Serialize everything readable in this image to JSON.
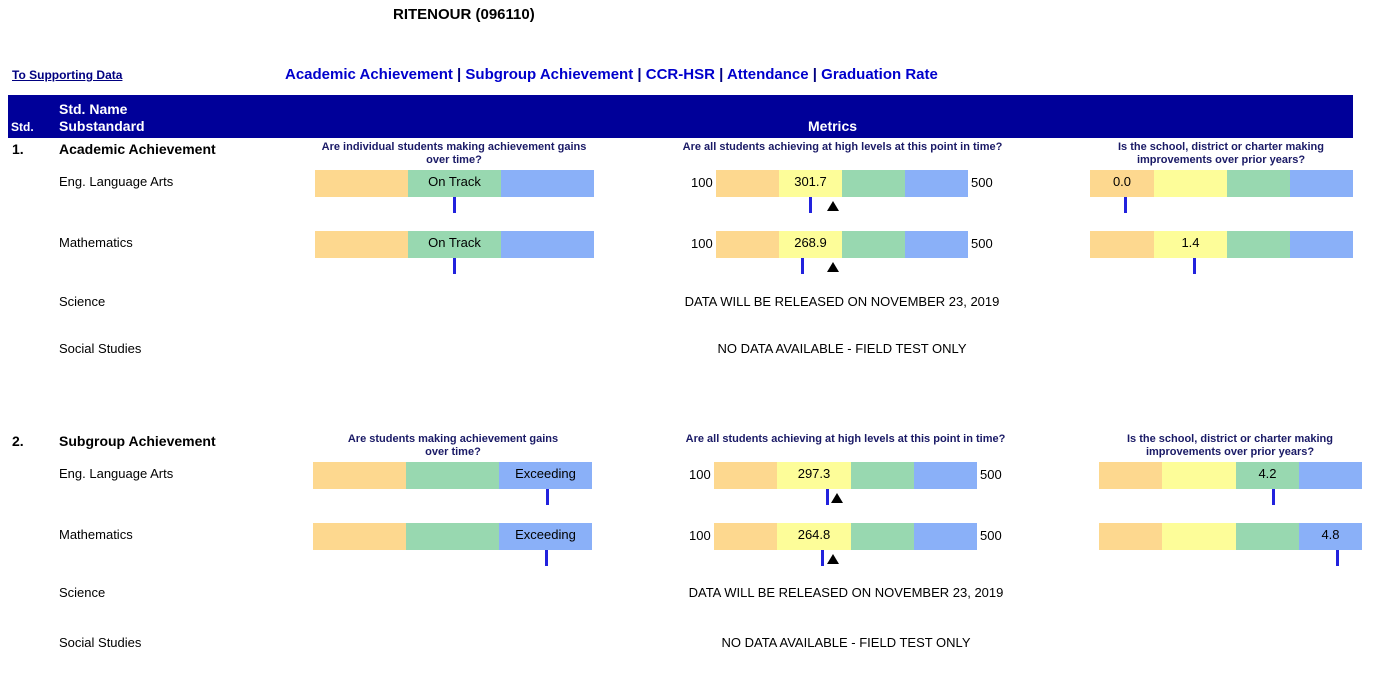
{
  "school_title": "RITENOUR (096110)",
  "support_link": "To Supporting Data",
  "nav": [
    "Academic Achievement",
    "Subgroup Achievement",
    "CCR-HSR",
    "Attendance",
    "Graduation Rate"
  ],
  "nav_sep": "|",
  "header": {
    "std": "Std.",
    "std_name": "Std. Name",
    "substandard": "Substandard",
    "metrics": "Metrics"
  },
  "sections": [
    {
      "num": "1.",
      "name": "Academic Achievement",
      "q_growth": "Are individual students making achievement gains over time?",
      "q_status": "Are all students achieving at high levels at this point in time?",
      "q_progress": "Is the school, district or charter making improvements over prior years?",
      "rows": [
        {
          "label": "Eng. Language Arts",
          "growth": "On Track",
          "status_min": "100",
          "status": "301.7",
          "status_max": "500",
          "progress": "0.0"
        },
        {
          "label": "Mathematics",
          "growth": "On Track",
          "status_min": "100",
          "status": "268.9",
          "status_max": "500",
          "progress": "1.4"
        },
        {
          "label": "Science",
          "notice": "DATA WILL BE RELEASED ON NOVEMBER 23, 2019"
        },
        {
          "label": "Social Studies",
          "notice": "NO DATA AVAILABLE - FIELD TEST ONLY"
        }
      ]
    },
    {
      "num": "2.",
      "name": "Subgroup Achievement",
      "q_growth": "Are students making achievement gains over time?",
      "q_status": "Are all students achieving at high levels at this point in time?",
      "q_progress": "Is the school, district or charter making improvements over prior years?",
      "rows": [
        {
          "label": "Eng. Language Arts",
          "growth": "Exceeding",
          "status_min": "100",
          "status": "297.3",
          "status_max": "500",
          "progress": "4.2"
        },
        {
          "label": "Mathematics",
          "growth": "Exceeding",
          "status_min": "100",
          "status": "264.8",
          "status_max": "500",
          "progress": "4.8"
        },
        {
          "label": "Science",
          "notice": "DATA WILL BE RELEASED ON NOVEMBER 23, 2019"
        },
        {
          "label": "Social Studies",
          "notice": "NO DATA AVAILABLE - FIELD TEST ONLY"
        }
      ]
    }
  ]
}
